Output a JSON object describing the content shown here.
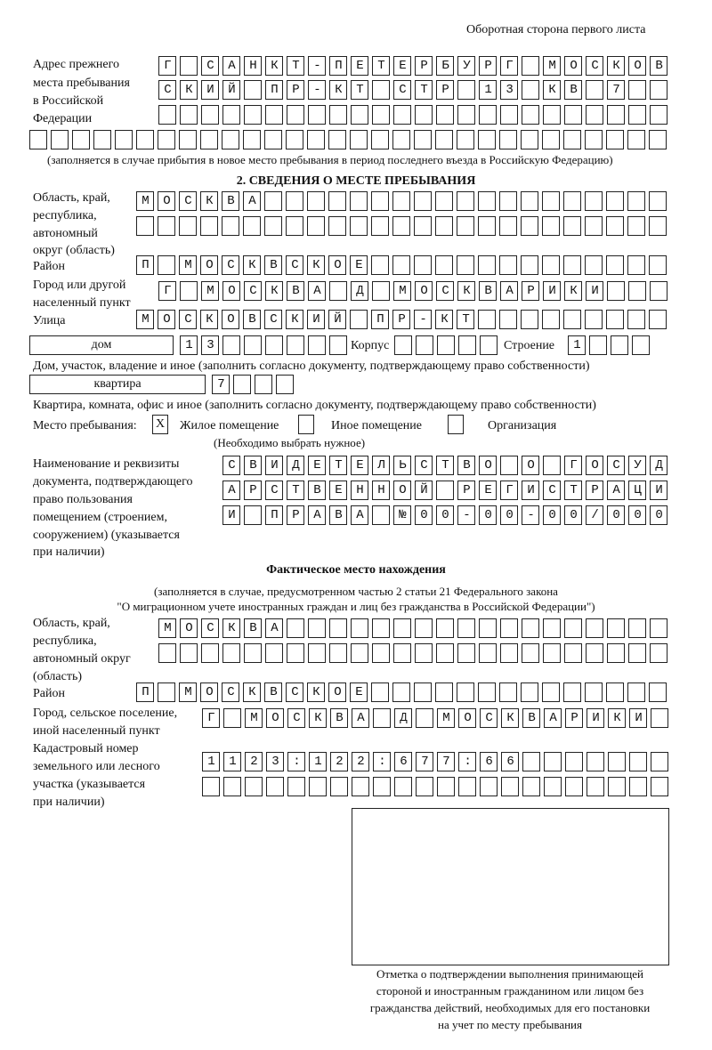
{
  "header": {
    "title": "Оборотная сторона первого листа"
  },
  "previous_address": {
    "label": [
      "Адрес прежнего",
      "места пребывания",
      "в Российской",
      "Федерации"
    ],
    "rows": [
      "Г САНКТ-ПЕТЕРБУРГ МОСКОВ",
      "СКИЙ ПР-КТ СТР 13 КВ 7  ",
      "                        ",
      "                              "
    ],
    "note": "(заполняется в случае прибытия в новое место пребывания в период последнего въезда в Российскую Федерацию)"
  },
  "section2": {
    "title": "2. СВЕДЕНИЯ О МЕСТЕ ПРЕБЫВАНИЯ",
    "region_label": [
      "Область, край,",
      "республика,",
      "автономный",
      "округ (область)"
    ],
    "region_rows": [
      "МОСКВА                   ",
      "                         "
    ],
    "district_label": "Район",
    "district_row": "П МОСКВСКОЕ              ",
    "city_label": [
      "Город или другой",
      "населенный пункт"
    ],
    "city_row": "Г МОСКВА Д МОСКВАРИКИ   ",
    "street_label": "Улица",
    "street_row": "МОСКОВСКИЙ ПР-КТ         ",
    "house_type": "дом",
    "house_row": "13      ",
    "korpus_label": "Корпус",
    "korpus_row": "     ",
    "building_label": "Строение",
    "building_row": "1   ",
    "house_note": "Дом, участок, владение и иное (заполнить согласно документу, подтверждающему право собственности)",
    "apt_type": "квартира",
    "apt_row": "7   ",
    "apt_note": "Квартира, комната, офис и иное (заполнить согласно документу, подтверждающему право собственности)",
    "place_label": "Место пребывания:",
    "options": [
      {
        "label": "Жилое помещение",
        "mark": "Х"
      },
      {
        "label": "Иное помещение",
        "mark": ""
      },
      {
        "label": "Организация",
        "mark": ""
      }
    ],
    "place_note": "(Необходимо выбрать нужное)",
    "doc_label": [
      "Наименование и реквизиты",
      "документа, подтверждающего",
      "право пользования",
      "помещением (строением,",
      "сооружением) (указывается",
      "при наличии)"
    ],
    "doc_rows": [
      "СВИДЕТЕЛЬСТВО О ГОСУД",
      "АРСТВЕННОЙ РЕГИСТРАЦИ",
      "И ПРАВА №00-00-00/000"
    ]
  },
  "actual": {
    "title": "Фактическое место нахождения",
    "note": [
      "(заполняется в случае, предусмотренном частью 2 статьи 21 Федерального закона",
      "\"О миграционном учете иностранных граждан и лиц без гражданства в Российской Федерации\")"
    ],
    "region_label": [
      "Область, край,",
      "республика,",
      "автономный округ",
      "(область)"
    ],
    "region_rows": [
      "МОСКВА                  ",
      "                        "
    ],
    "district_label": "Район",
    "district_row": "П МОСКВСКОЕ              ",
    "city_label": [
      "Город, сельское поселение,",
      "иной населенный пункт"
    ],
    "city_row": "Г МОСКВА Д МОСКВАРИКИ ",
    "cadastre_label": [
      "Кадастровый номер",
      "земельного или лесного",
      "участка (указывается",
      "при наличии)"
    ],
    "cadastre_rows": [
      "1123:122:677:66       ",
      "                      "
    ]
  },
  "stamp": {
    "caption": [
      "Отметка о подтверждении выполнения принимающей",
      "стороной и иностранным гражданином или лицом без",
      "гражданства действий, необходимых для его постановки",
      "на учет по месту пребывания"
    ]
  }
}
